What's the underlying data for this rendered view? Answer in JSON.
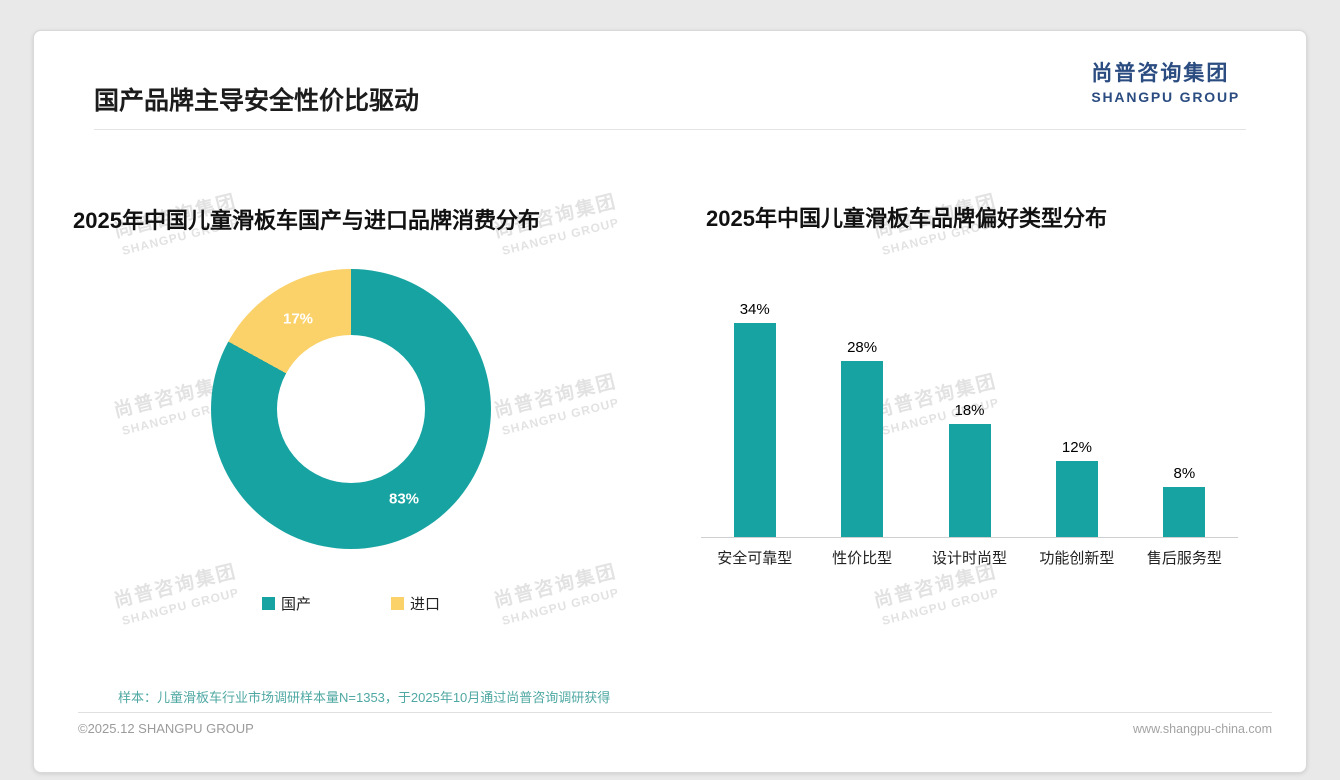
{
  "page": {
    "title": "国产品牌主导安全性价比驱动",
    "logo": {
      "cn": "尚普咨询集团",
      "en": "SHANGPU GROUP"
    },
    "watermark": {
      "cn": "尚普咨询集团",
      "en": "SHANGPU GROUP"
    },
    "footer_note": "样本：儿童滑板车行业市场调研样本量N=1353，于2025年10月通过尚普咨询调研获得",
    "footer_left": "©2025.12 SHANGPU GROUP",
    "footer_right": "www.shangpu-china.com"
  },
  "colors": {
    "teal": "#17A3A1",
    "yellow": "#FBD169",
    "navy": "#2B4C80"
  },
  "chart_data": [
    {
      "type": "pie",
      "donut": true,
      "title": "2025年中国儿童滑板车国产与进口品牌消费分布",
      "labels": [
        "国产",
        "进口"
      ],
      "values": [
        83,
        17
      ],
      "value_labels": [
        "83%",
        "17%"
      ],
      "colors": [
        "#17A3A1",
        "#FBD169"
      ],
      "legend_position": "bottom"
    },
    {
      "type": "bar",
      "title": "2025年中国儿童滑板车品牌偏好类型分布",
      "categories": [
        "安全可靠型",
        "性价比型",
        "设计时尚型",
        "功能创新型",
        "售后服务型"
      ],
      "values": [
        34,
        28,
        18,
        12,
        8
      ],
      "value_labels": [
        "34%",
        "28%",
        "18%",
        "12%",
        "8%"
      ],
      "bar_color": "#17A3A1",
      "ylim": [
        0,
        40
      ],
      "grid": false,
      "legend_position": "none"
    }
  ]
}
